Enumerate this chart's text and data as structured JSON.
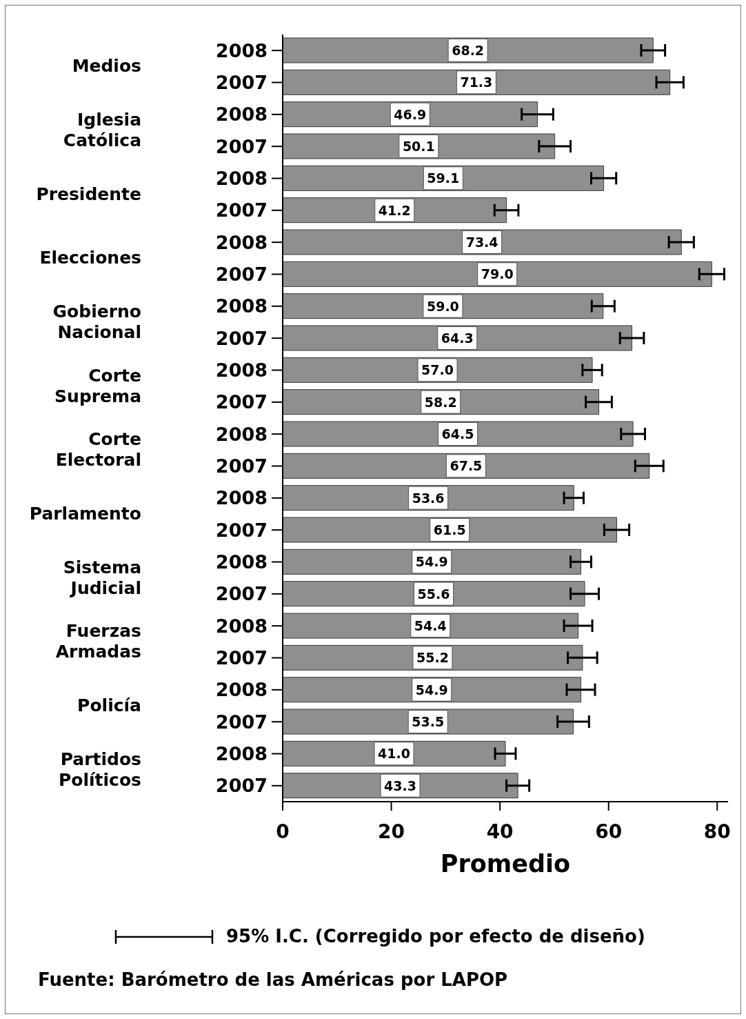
{
  "chart_data": {
    "type": "bar",
    "orientation": "horizontal",
    "categories": [
      "2008",
      "2007",
      "2008",
      "2007",
      "2008",
      "2007",
      "2008",
      "2007",
      "2008",
      "2007",
      "2008",
      "2007",
      "2008",
      "2007",
      "2008",
      "2007",
      "2008",
      "2007",
      "2008",
      "2007",
      "2008",
      "2007",
      "2008",
      "2007"
    ],
    "values": [
      68.2,
      71.3,
      46.9,
      50.1,
      59.1,
      41.2,
      73.4,
      79.0,
      59.0,
      64.3,
      57.0,
      58.2,
      64.5,
      67.5,
      53.6,
      61.5,
      54.9,
      55.6,
      54.4,
      55.2,
      54.9,
      53.5,
      41.0,
      43.3
    ],
    "errors": [
      2.2,
      2.5,
      2.9,
      2.9,
      2.3,
      2.2,
      2.3,
      2.3,
      2.1,
      2.2,
      1.8,
      2.4,
      2.2,
      2.6,
      1.8,
      2.3,
      1.9,
      2.6,
      2.6,
      2.7,
      2.6,
      2.9,
      1.9,
      2.1
    ],
    "value_labels": [
      "68.2",
      "71.3",
      "46.9",
      "50.1",
      "59.1",
      "41.2",
      "73.4",
      "79.0",
      "59.0",
      "64.3",
      "57.0",
      "58.2",
      "64.5",
      "67.5",
      "53.6",
      "61.5",
      "54.9",
      "55.6",
      "54.4",
      "55.2",
      "54.9",
      "53.5",
      "41.0",
      "43.3"
    ],
    "color": "#8f8f8f",
    "xlim": [
      0,
      82
    ],
    "xticks": [
      0,
      20,
      40,
      60,
      80
    ],
    "xlabel": "Promedio",
    "annotations": [
      "Medios",
      "Iglesia Católica",
      "Presidente",
      "Elecciones",
      "Gobierno Nacional",
      "Corte Suprema",
      "Corte Electoral",
      "Parlamento",
      "Sistema Judicial",
      "Fuerzas Armadas",
      "Policía",
      "Partidos Políticos",
      "95% I.C. (Corregido por efecto de diseño)",
      "Fuente: Barómetro de las Américas por LAPOP"
    ]
  }
}
